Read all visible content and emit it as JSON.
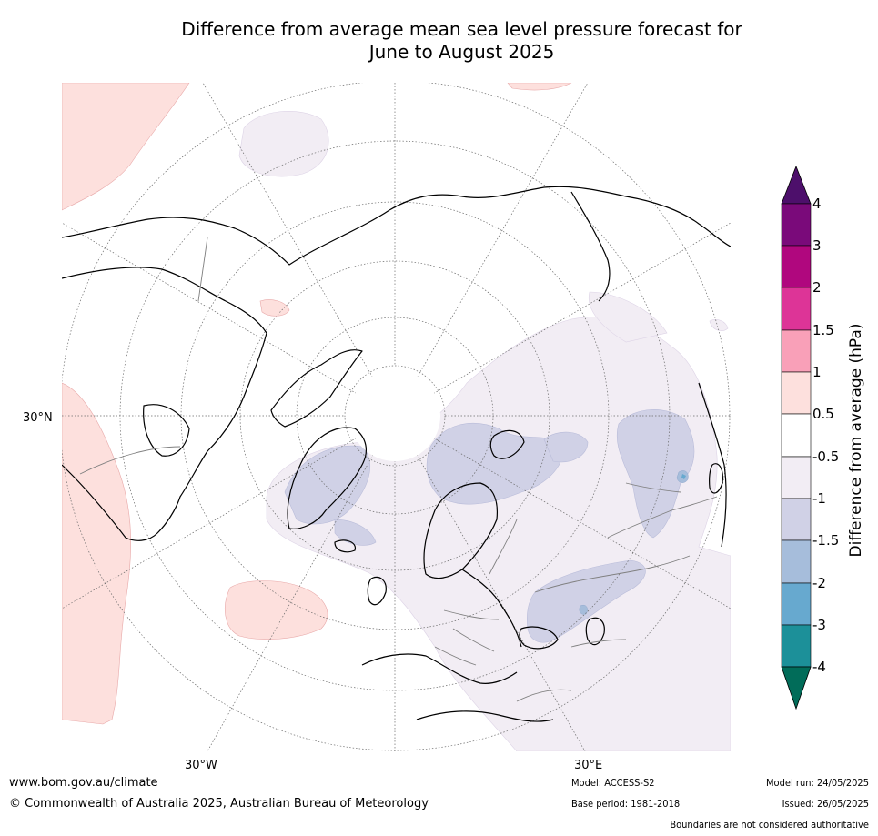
{
  "title_line1": "Difference from average mean sea level pressure forecast for",
  "title_line2": "June to August 2025",
  "map": {
    "graticule_labels": {
      "lat_30n": "30°N",
      "lon_30w": "30°W",
      "lon_30e": "30°E"
    },
    "land_outline_color": "#000000",
    "border_color": "#808080"
  },
  "legend": {
    "label": "Difference from average (hPa)",
    "ticks": [
      "4",
      "3",
      "2",
      "1.5",
      "1",
      "0.5",
      "-0.5",
      "-1",
      "-1.5",
      "-2",
      "-3",
      "-4"
    ],
    "colors": [
      {
        "range": "> 4",
        "color": "#4d0f6b"
      },
      {
        "range": "3 to 4",
        "color": "#7a0a7a"
      },
      {
        "range": "2 to 3",
        "color": "#b0077e"
      },
      {
        "range": "1.5 to 2",
        "color": "#dd3497"
      },
      {
        "range": "1 to 1.5",
        "color": "#f9a0b8"
      },
      {
        "range": "0.5 to 1",
        "color": "#fde0dd"
      },
      {
        "range": "-0.5 to 0.5",
        "color": "#ffffff"
      },
      {
        "range": "-1 to -0.5",
        "color": "#f2edf4"
      },
      {
        "range": "-1.5 to -1",
        "color": "#d0d1e6"
      },
      {
        "range": "-2 to -1.5",
        "color": "#a6bddb"
      },
      {
        "range": "-3 to -2",
        "color": "#67a9cf"
      },
      {
        "range": "-4 to -3",
        "color": "#1c9099"
      },
      {
        "range": "< -4",
        "color": "#016c59"
      }
    ]
  },
  "footer": {
    "website": "www.bom.gov.au/climate",
    "copyright": "© Commonwealth of Australia 2025, Australian Bureau of Meteorology",
    "model": "Model: ACCESS-S2",
    "base_period": "Base period: 1981-2018",
    "model_run": "Model run: 24/05/2025",
    "issued": "Issued: 26/05/2025",
    "disclaimer": "Boundaries are not considered authoritative"
  }
}
